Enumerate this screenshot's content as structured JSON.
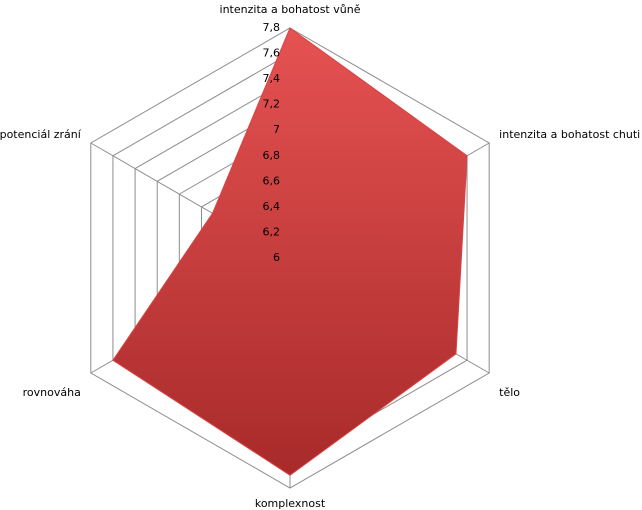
{
  "chart_data": {
    "type": "radar",
    "categories": [
      "intenzita a bohatost vůně",
      "intenzita a bohatost chuti",
      "tělo",
      "komplexnost",
      "rovnováha",
      "potenciál zrání"
    ],
    "values": [
      7.8,
      7.6,
      7.5,
      7.7,
      7.6,
      6.7
    ],
    "color": "#d94343",
    "ylim": [
      6,
      7.8
    ],
    "yticks": [
      6,
      {
        "value": 6.2,
        "label": "6,2"
      },
      {
        "value": 6.4,
        "label": "6,4"
      },
      {
        "value": 6.6,
        "label": "6,6"
      },
      {
        "value": 6.8,
        "label": "6,8"
      },
      7,
      {
        "value": 7.2,
        "label": "7,2"
      },
      {
        "value": 7.4,
        "label": "7,4"
      },
      {
        "value": 7.6,
        "label": "7,6"
      },
      {
        "value": 7.8,
        "label": "7,8"
      }
    ]
  }
}
